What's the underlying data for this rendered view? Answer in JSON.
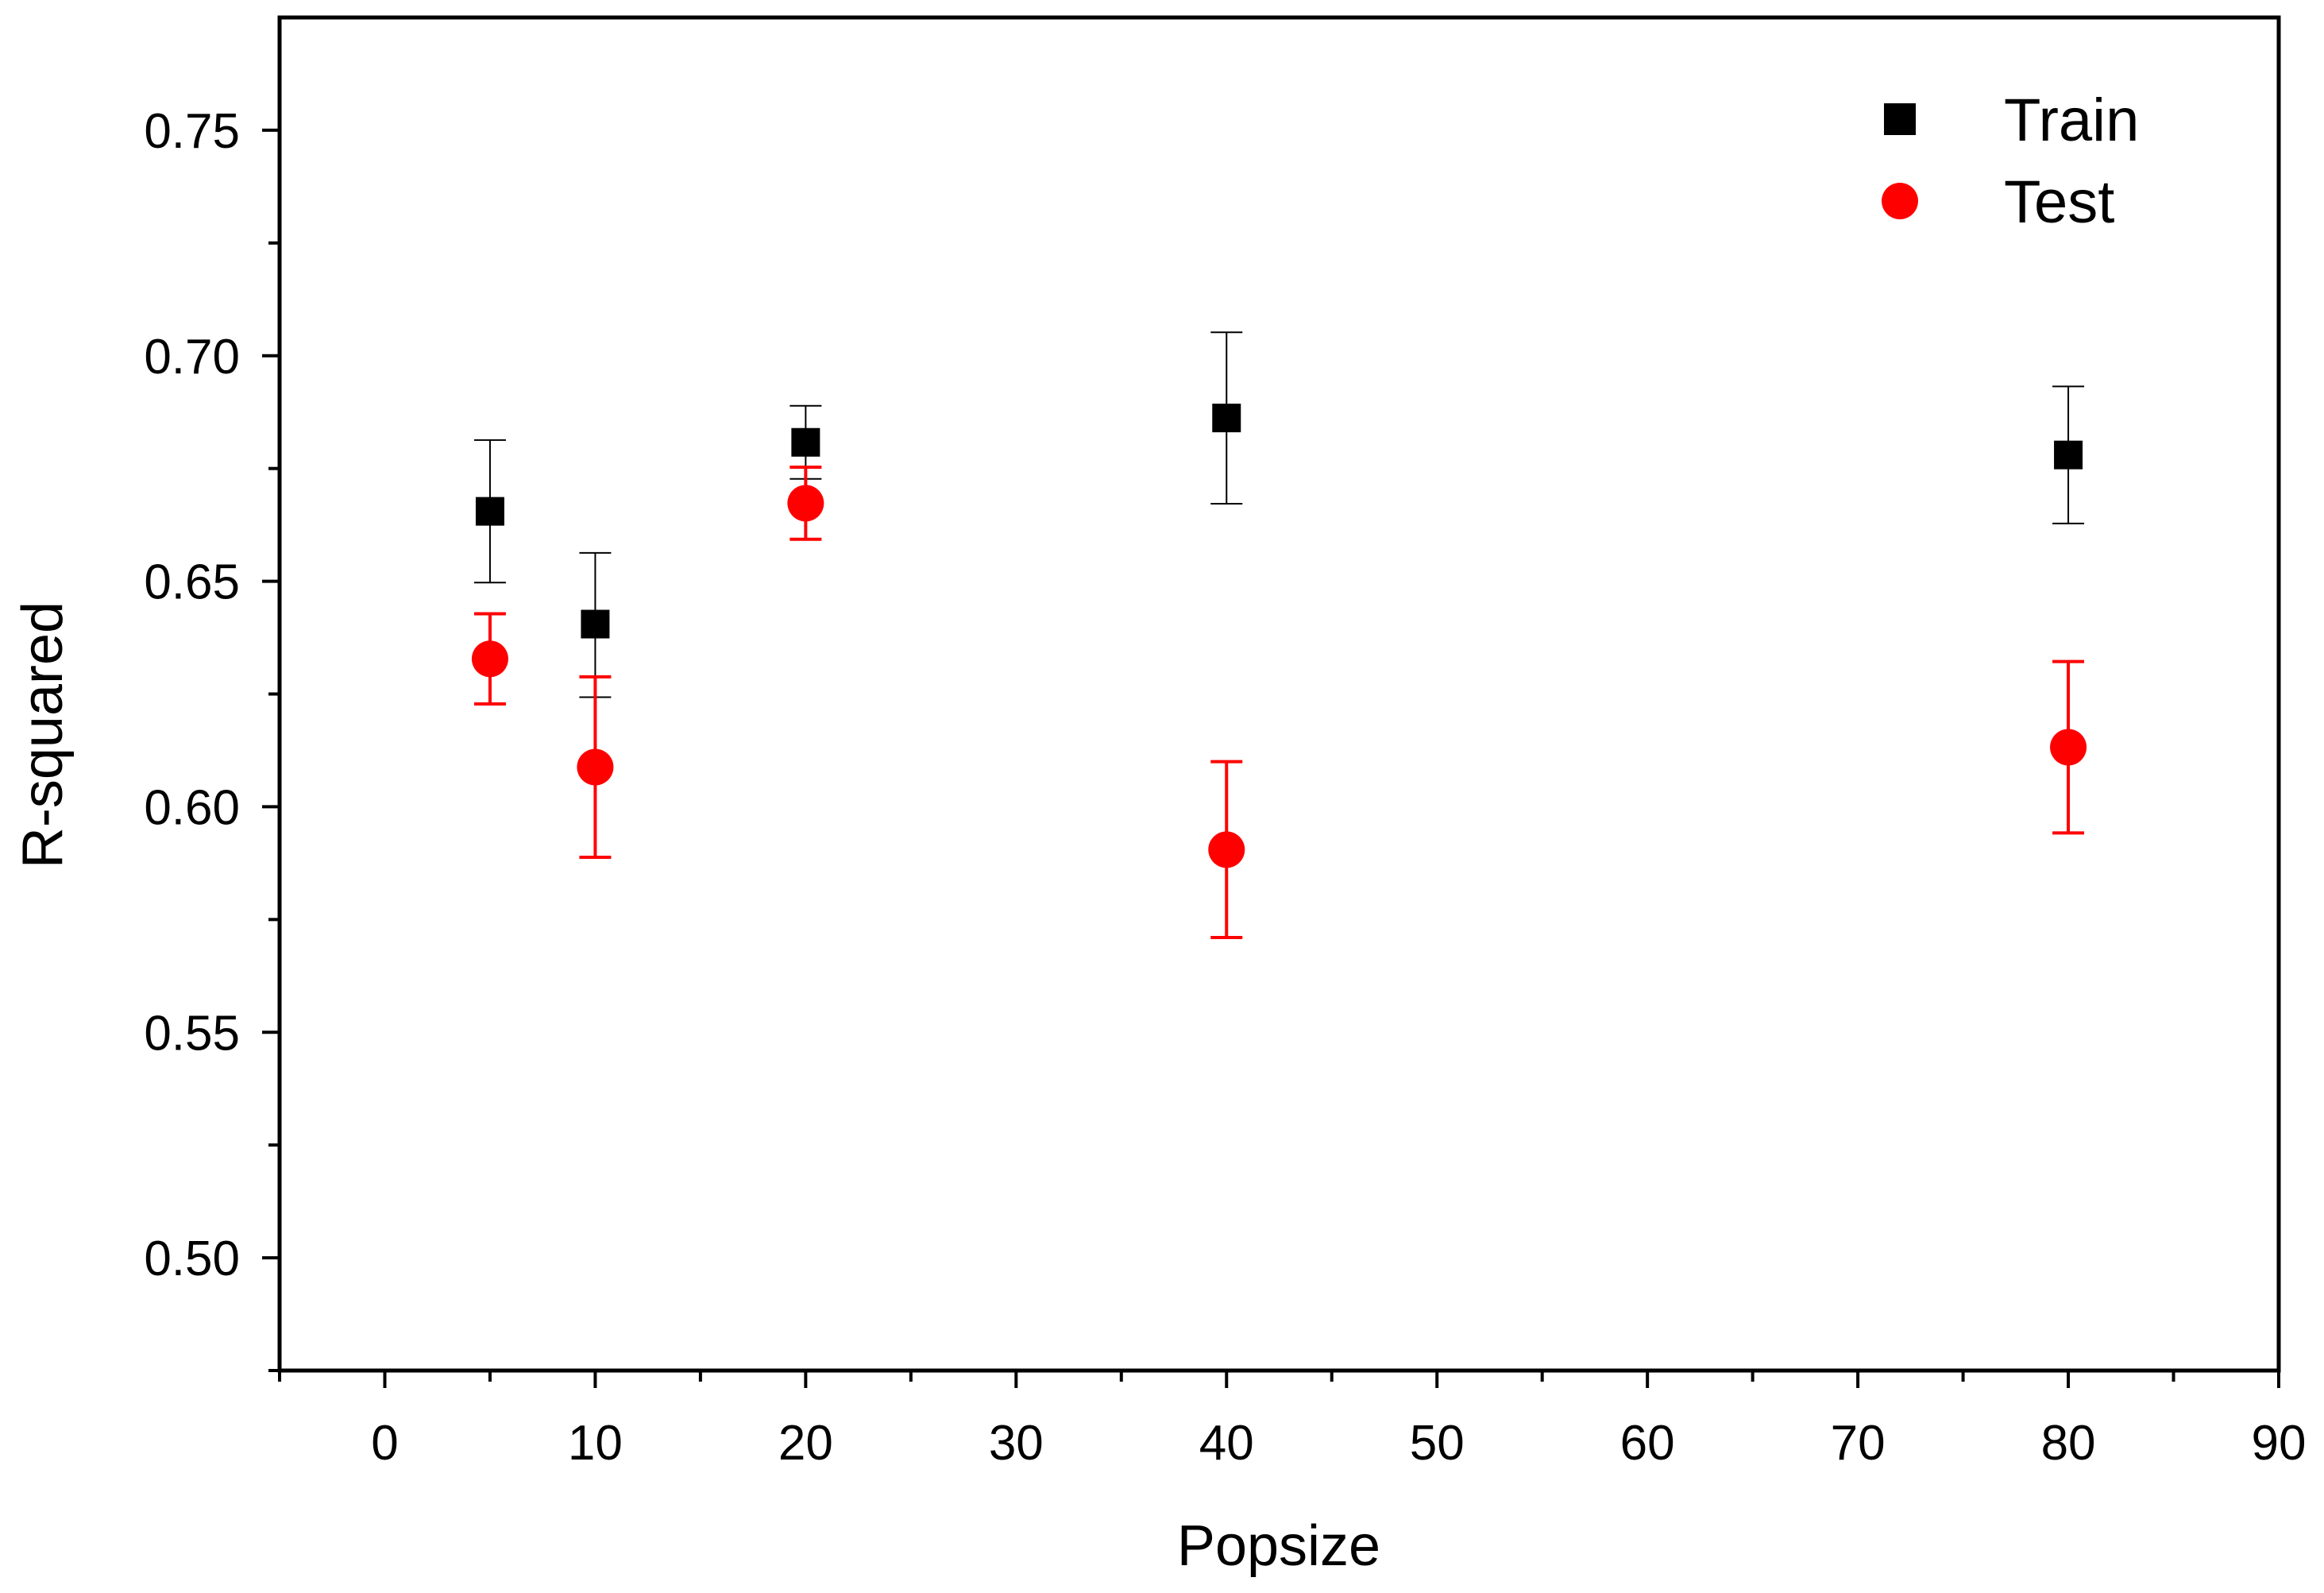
{
  "chart_data": {
    "type": "scatter",
    "title": "",
    "xlabel": "Popsize",
    "ylabel": "R-squared",
    "xlim": [
      -5,
      90
    ],
    "ylim": [
      0.475,
      0.775
    ],
    "xticks": [
      0,
      10,
      20,
      30,
      40,
      50,
      60,
      70,
      80,
      90
    ],
    "xtick_labels": [
      "0",
      "10",
      "20",
      "30",
      "40",
      "50",
      "60",
      "70",
      "80",
      "90"
    ],
    "yticks": [
      0.5,
      0.55,
      0.6,
      0.65,
      0.7,
      0.75
    ],
    "ytick_labels": [
      "0.50",
      "0.55",
      "0.60",
      "0.65",
      "0.70",
      "0.75"
    ],
    "grid": false,
    "legend_position": "top-right",
    "series": [
      {
        "name": "Train",
        "marker": "square",
        "color": "#000000",
        "x": [
          5,
          10,
          20,
          40,
          80
        ],
        "y": [
          0.6655,
          0.6405,
          0.6808,
          0.6862,
          0.678
        ],
        "err_low": [
          0.6497,
          0.6243,
          0.6727,
          0.6672,
          0.6628
        ],
        "err_high": [
          0.6813,
          0.6563,
          0.6889,
          0.7052,
          0.6932
        ]
      },
      {
        "name": "Test",
        "marker": "circle",
        "color": "#ff0000",
        "x": [
          5,
          10,
          20,
          40,
          80
        ],
        "y": [
          0.6328,
          0.6088,
          0.6673,
          0.5905,
          0.6132
        ],
        "err_low": [
          0.6228,
          0.5888,
          0.6593,
          0.571,
          0.5942
        ],
        "err_high": [
          0.6428,
          0.6288,
          0.6753,
          0.61,
          0.6322
        ]
      }
    ]
  }
}
